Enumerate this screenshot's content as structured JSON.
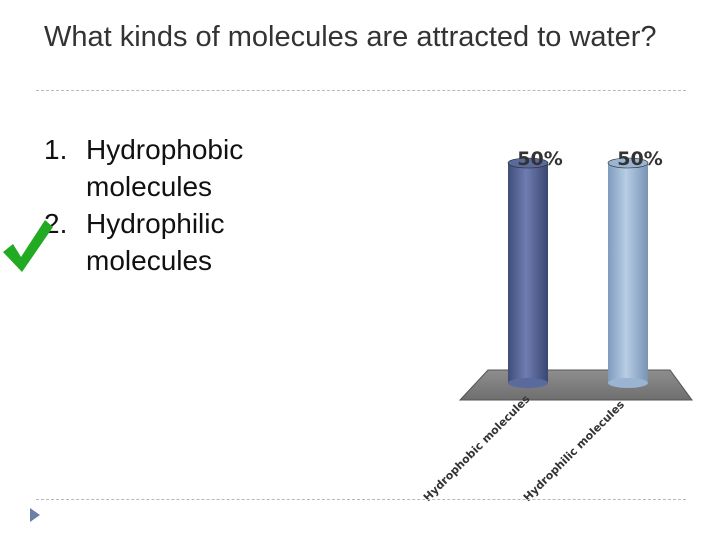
{
  "slide": {
    "title": "What kinds of molecules are attracted to water?"
  },
  "options": [
    {
      "number": "1.",
      "text": "Hydrophobic molecules"
    },
    {
      "number": "2.",
      "text": "Hydrophilic molecules"
    }
  ],
  "correct_indicator": {
    "icon": "checkmark-icon",
    "option_index": 1,
    "color": "#22aa22"
  },
  "chart_data": {
    "type": "bar",
    "categories": [
      "Hydrophobic molecules",
      "Hydrophilic molecules"
    ],
    "values": [
      50,
      50
    ],
    "data_labels": [
      "50%",
      "50%"
    ],
    "ylim": [
      0,
      100
    ],
    "title": "",
    "xlabel": "",
    "ylabel": "",
    "colors": [
      "#5a6a9c",
      "#9ab4d2"
    ],
    "grid": false,
    "legend": "none"
  }
}
